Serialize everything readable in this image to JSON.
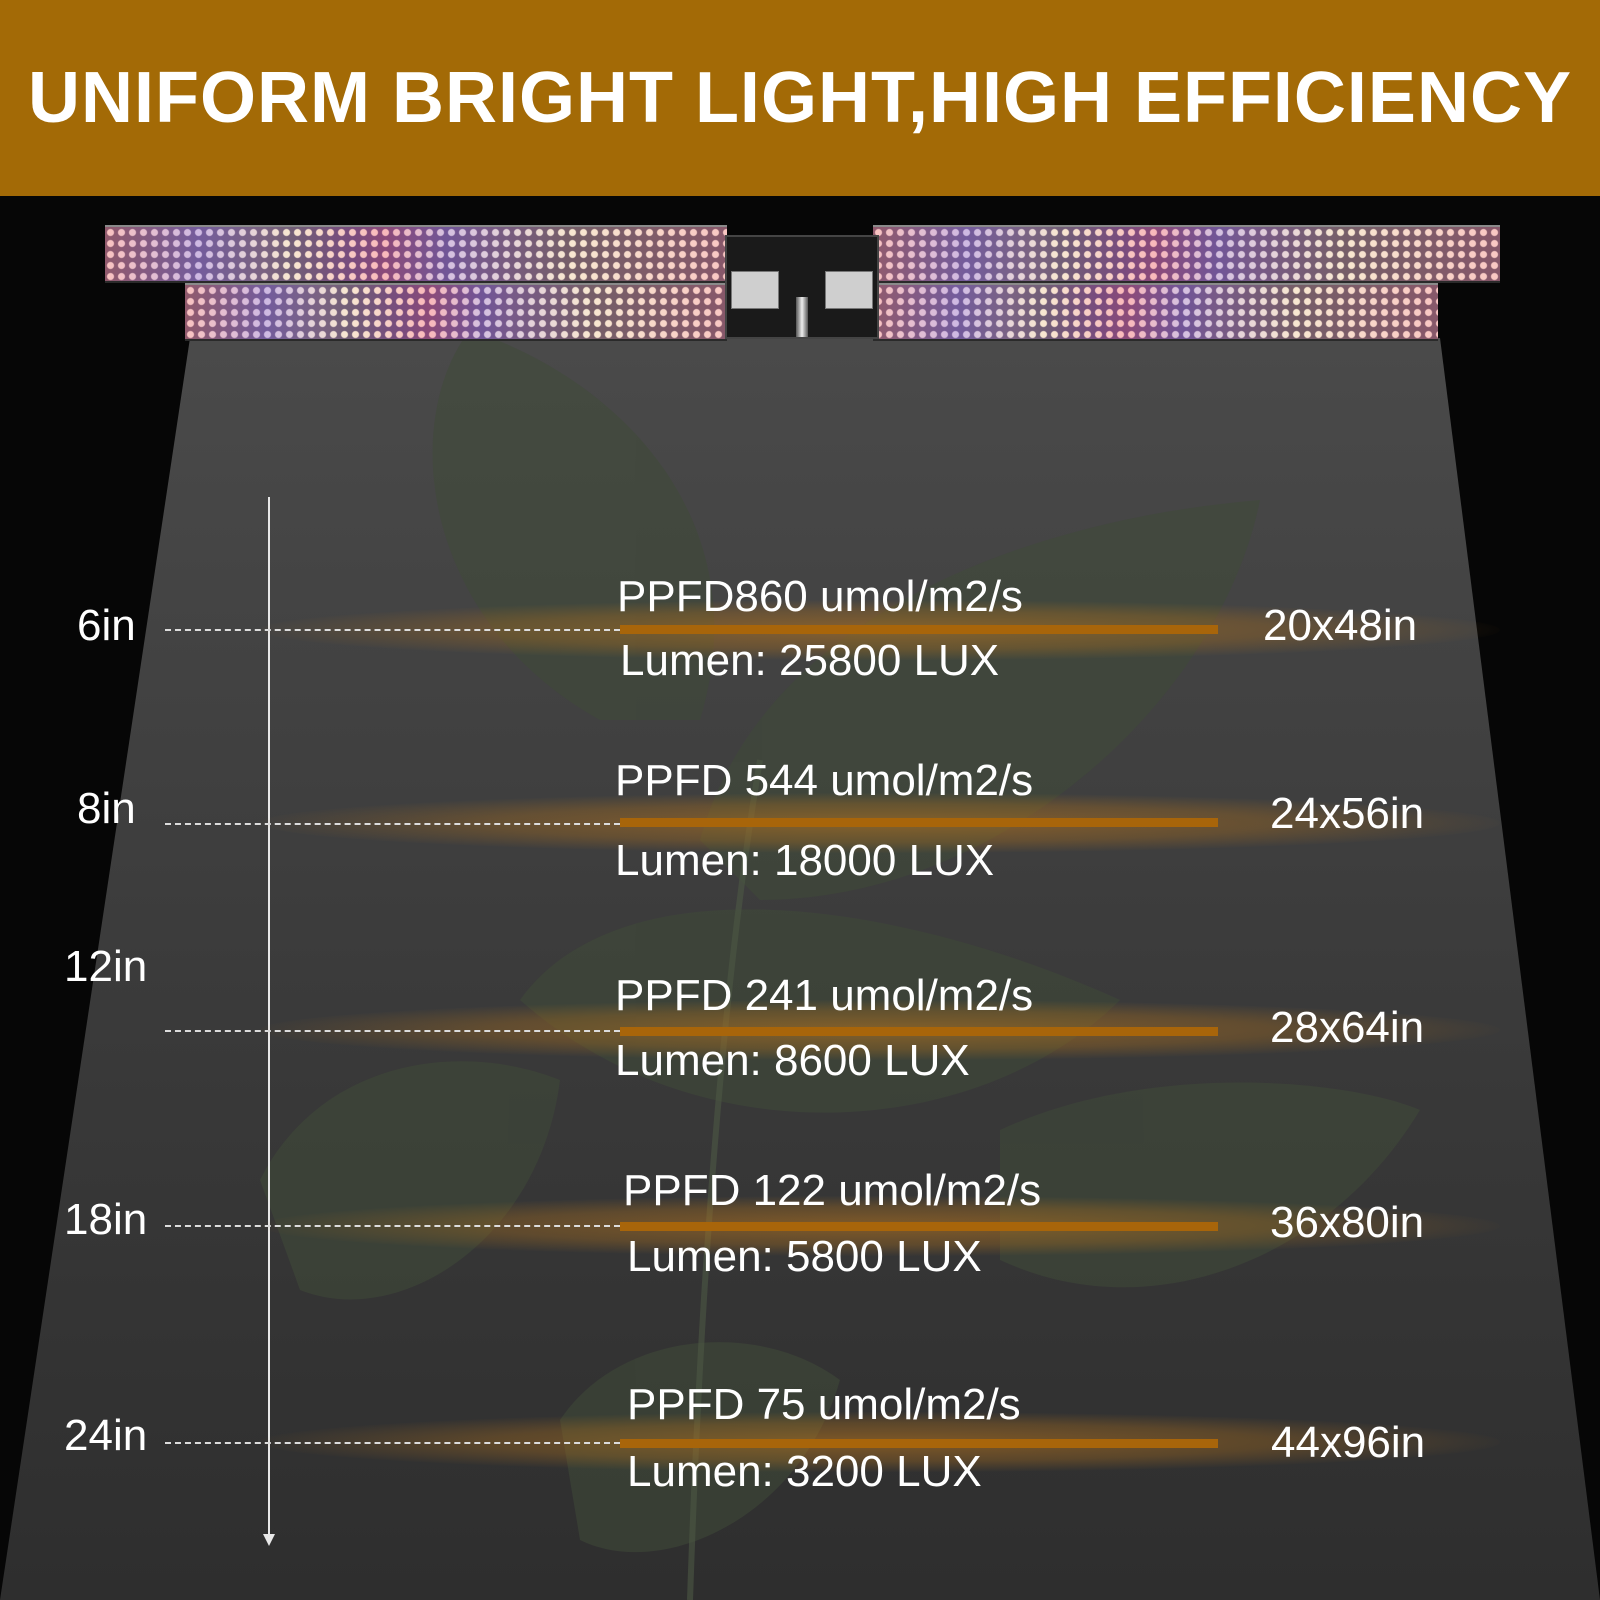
{
  "title": "UNIFORM BRIGHT LIGHT,HIGH EFFICIENCY",
  "colors": {
    "banner": "#a36a06",
    "bar": "#a8650a",
    "background": "#060606",
    "beam": "#3a3a3a",
    "text": "#ffffff"
  },
  "rows": [
    {
      "height": "6in",
      "ppfd": "PPFD860  umol/m2/s",
      "lumen": "Lumen: 25800 LUX",
      "coverage": "20x48in"
    },
    {
      "height": "8in",
      "ppfd": "PPFD 544  umol/m2/s",
      "lumen": "Lumen: 18000 LUX",
      "coverage": "24x56in"
    },
    {
      "height": "12in",
      "ppfd": "PPFD 241  umol/m2/s",
      "lumen": "Lumen: 8600 LUX",
      "coverage": "28x64in"
    },
    {
      "height": "18in",
      "ppfd": "PPFD 122  umol/m2/s",
      "lumen": "Lumen: 5800 LUX",
      "coverage": "36x80in"
    },
    {
      "height": "24in",
      "ppfd": "PPFD 75  umol/m2/s",
      "lumen": "Lumen: 3200 LUX",
      "coverage": "44x96in"
    }
  ]
}
